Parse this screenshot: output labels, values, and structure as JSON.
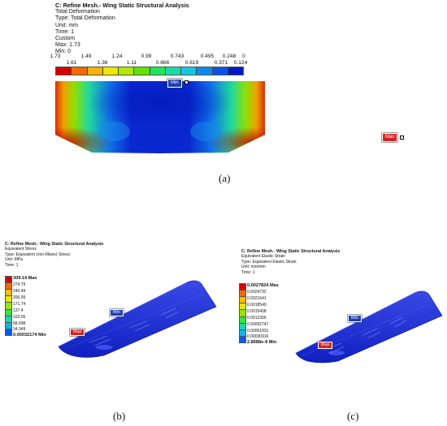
{
  "panel_a": {
    "title": "C: Refine Mesh.- Wing Static Structural Analysis",
    "lines": [
      "Total Deformation",
      "Type: Total Deformation",
      "Unit: mm",
      "Time: 1",
      "Custom",
      "Max: 1.73",
      "Min: 0"
    ],
    "legend_top": [
      "1.73",
      "1.49",
      "1.24",
      "0.99",
      "0.743",
      "0.495",
      "0.248",
      "0"
    ],
    "legend_bottom": [
      "1.61",
      "1.36",
      "1.11",
      "0.866",
      "0.619",
      "0.371",
      "0.124"
    ],
    "legend_colors": [
      "#d40000",
      "#f26a00",
      "#f5b400",
      "#f0e600",
      "#b4e800",
      "#62e000",
      "#1ee65a",
      "#18dca8",
      "#12c6e6",
      "#0a8cee",
      "#0a50ea",
      "#0018c8"
    ],
    "min_tag": "Min",
    "max_tag": "Max",
    "caption": "(a)"
  },
  "panel_b": {
    "title": "C: Refine Mesh.- Wing Static Structural Analysis",
    "lines": [
      "Equivalent Stress",
      "Type: Equivalent (von-Mises) Stress",
      "Unit: MPa",
      "Time: 1"
    ],
    "legend_values": [
      "309.14 Max",
      "274.79",
      "240.44",
      "206.09",
      "171.74",
      "137.4",
      "103.05",
      "68.698",
      "34.349",
      "0.00032174 Min"
    ],
    "legend_colors": [
      "#d40000",
      "#f26a00",
      "#f5c000",
      "#e6e600",
      "#9ae600",
      "#3ce040",
      "#18d8b0",
      "#10b4e8",
      "#0a5aee"
    ],
    "min_tag": "Min",
    "max_tag": "Max",
    "caption": "(b)"
  },
  "panel_c": {
    "title": "C: Refine Mesh.- Wing Static Structural Analysis",
    "lines": [
      "Equivalent Elastic Strain",
      "Type: Equivalent Elastic Strain",
      "Unit: mm/mm",
      "Time: 1"
    ],
    "legend_values": [
      "0.0027824 Max",
      "0.0024732",
      "0.0021641",
      "0.0018549",
      "0.0015458",
      "0.0012366",
      "0.00092747",
      "0.00061831",
      "0.00030916",
      "2.8688e-9 Min"
    ],
    "legend_colors": [
      "#d40000",
      "#f26a00",
      "#f5c000",
      "#e6e600",
      "#9ae600",
      "#3ce040",
      "#18d8b0",
      "#10b4e8",
      "#0a5aee"
    ],
    "min_tag": "Min",
    "max_tag": "Max",
    "caption": "(c)"
  }
}
